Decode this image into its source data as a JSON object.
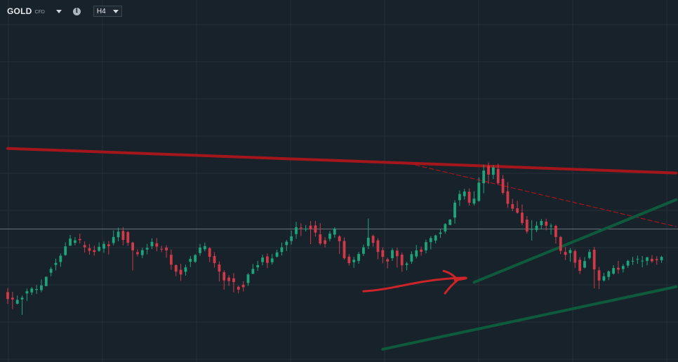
{
  "header": {
    "symbol": "GOLD",
    "instrument_type": "CFD",
    "timeframe": "H4",
    "icons": [
      "caret-down-icon",
      "info-icon",
      "caret-down-icon"
    ]
  },
  "colors": {
    "background": "#18222b",
    "grid": "#24303a",
    "bull": "#1fa37a",
    "bear": "#d03a48",
    "resistance_line": "#a5161c",
    "support_lines": "#0e5a3c",
    "annotation_arrow": "#cc2428",
    "price_line": "#6b747c"
  },
  "chart_data": {
    "type": "candlestick",
    "title": "",
    "xlabel": "",
    "ylabel": "",
    "ylim": [
      0,
      100
    ],
    "grid": true,
    "x_count": 140,
    "horizontal_price_line": 43.9,
    "candles": [
      {
        "o": 15.6,
        "h": 17.4,
        "c": 12.5,
        "l": 10.3
      },
      {
        "o": 13.1,
        "h": 15.7,
        "c": 12.3,
        "l": 8.0
      },
      {
        "o": 10.4,
        "h": 14.1,
        "c": 12.1,
        "l": 10.1
      },
      {
        "o": 12.3,
        "h": 14.1,
        "c": 13.1,
        "l": 5.4
      },
      {
        "o": 15.0,
        "h": 17.2,
        "c": 16.0,
        "l": 11.7
      },
      {
        "o": 15.5,
        "h": 17.9,
        "c": 17.2,
        "l": 14.3
      },
      {
        "o": 16.6,
        "h": 18.8,
        "c": 17.0,
        "l": 14.8
      },
      {
        "o": 16.5,
        "h": 21.3,
        "c": 18.6,
        "l": 15.6
      },
      {
        "o": 18.3,
        "h": 22.5,
        "c": 22.5,
        "l": 18.2
      },
      {
        "o": 24.3,
        "h": 26.9,
        "c": 26.0,
        "l": 22.7
      },
      {
        "o": 27.8,
        "h": 30.6,
        "c": 28.7,
        "l": 25.3
      },
      {
        "o": 29.1,
        "h": 32.9,
        "c": 31.9,
        "l": 27.0
      },
      {
        "o": 32.2,
        "h": 37.9,
        "c": 36.1,
        "l": 31.9
      },
      {
        "o": 36.4,
        "h": 41.2,
        "c": 39.6,
        "l": 36.4
      },
      {
        "o": 37.7,
        "h": 40.3,
        "c": 38.8,
        "l": 36.6
      },
      {
        "o": 39.4,
        "h": 41.8,
        "c": 38.9,
        "l": 37.4
      },
      {
        "o": 36.7,
        "h": 38.3,
        "c": 35.7,
        "l": 33.3
      },
      {
        "o": 35.3,
        "h": 37.2,
        "c": 34.1,
        "l": 32.4
      },
      {
        "o": 34.4,
        "h": 36.4,
        "c": 33.6,
        "l": 32.0
      },
      {
        "o": 34.1,
        "h": 37.9,
        "c": 35.9,
        "l": 33.7
      },
      {
        "o": 35.1,
        "h": 38.4,
        "c": 37.2,
        "l": 33.2
      },
      {
        "o": 37.0,
        "h": 38.5,
        "c": 36.2,
        "l": 32.5
      },
      {
        "o": 37.6,
        "h": 43.3,
        "c": 40.3,
        "l": 36.6
      },
      {
        "o": 40.2,
        "h": 44.5,
        "c": 42.7,
        "l": 38.4
      },
      {
        "o": 43.0,
        "h": 44.7,
        "c": 39.0,
        "l": 36.6
      },
      {
        "o": 42.5,
        "h": 43.0,
        "c": 37.7,
        "l": 36.4
      },
      {
        "o": 37.8,
        "h": 38.2,
        "c": 34.3,
        "l": 25.3
      },
      {
        "o": 33.5,
        "h": 34.8,
        "c": 32.6,
        "l": 31.6
      },
      {
        "o": 32.2,
        "h": 35.5,
        "c": 34.4,
        "l": 30.8
      },
      {
        "o": 34.7,
        "h": 37.2,
        "c": 35.4,
        "l": 32.5
      },
      {
        "o": 36.2,
        "h": 39.7,
        "c": 38.1,
        "l": 34.9
      },
      {
        "o": 37.5,
        "h": 39.8,
        "c": 36.0,
        "l": 33.9
      },
      {
        "o": 35.0,
        "h": 36.4,
        "c": 34.7,
        "l": 33.5
      },
      {
        "o": 35.6,
        "h": 36.6,
        "c": 34.3,
        "l": 31.0
      },
      {
        "o": 32.3,
        "h": 34.7,
        "c": 27.9,
        "l": 25.6
      },
      {
        "o": 27.7,
        "h": 28.0,
        "c": 24.8,
        "l": 22.7
      },
      {
        "o": 25.6,
        "h": 28.3,
        "c": 23.5,
        "l": 20.6
      },
      {
        "o": 24.7,
        "h": 27.9,
        "c": 26.7,
        "l": 23.0
      },
      {
        "o": 29.2,
        "h": 31.8,
        "c": 30.5,
        "l": 26.8
      },
      {
        "o": 29.2,
        "h": 32.6,
        "c": 32.2,
        "l": 28.7
      },
      {
        "o": 33.1,
        "h": 37.2,
        "c": 35.6,
        "l": 31.9
      },
      {
        "o": 34.8,
        "h": 37.8,
        "c": 36.2,
        "l": 33.9
      },
      {
        "o": 35.3,
        "h": 35.8,
        "c": 31.4,
        "l": 29.0
      },
      {
        "o": 31.8,
        "h": 33.5,
        "c": 28.6,
        "l": 26.6
      },
      {
        "o": 28.0,
        "h": 29.4,
        "c": 24.8,
        "l": 20.4
      },
      {
        "o": 24.5,
        "h": 25.4,
        "c": 20.8,
        "l": 16.7
      },
      {
        "o": 22.1,
        "h": 23.2,
        "c": 20.6,
        "l": 18.4
      },
      {
        "o": 21.8,
        "h": 24.1,
        "c": 20.1,
        "l": 15.5
      },
      {
        "o": 18.0,
        "h": 18.5,
        "c": 16.7,
        "l": 15.0
      },
      {
        "o": 18.9,
        "h": 20.5,
        "c": 17.8,
        "l": 15.9
      },
      {
        "o": 19.7,
        "h": 24.1,
        "c": 23.5,
        "l": 18.4
      },
      {
        "o": 23.8,
        "h": 28.2,
        "c": 26.0,
        "l": 23.7
      },
      {
        "o": 26.7,
        "h": 29.6,
        "c": 27.7,
        "l": 25.1
      },
      {
        "o": 29.1,
        "h": 32.4,
        "c": 31.1,
        "l": 27.6
      },
      {
        "o": 31.6,
        "h": 33.0,
        "c": 28.7,
        "l": 26.4
      },
      {
        "o": 29.0,
        "h": 32.7,
        "c": 30.7,
        "l": 28.0
      },
      {
        "o": 31.5,
        "h": 34.6,
        "c": 33.4,
        "l": 31.1
      },
      {
        "o": 33.6,
        "h": 37.8,
        "c": 35.7,
        "l": 32.0
      },
      {
        "o": 36.7,
        "h": 39.0,
        "c": 38.2,
        "l": 34.0
      },
      {
        "o": 38.5,
        "h": 43.2,
        "c": 40.6,
        "l": 36.9
      },
      {
        "o": 41.6,
        "h": 47.1,
        "c": 44.7,
        "l": 39.5
      },
      {
        "o": 44.5,
        "h": 46.5,
        "c": 44.2,
        "l": 40.8
      },
      {
        "o": 43.8,
        "h": 45.7,
        "c": 44.0,
        "l": 42.8
      },
      {
        "o": 45.4,
        "h": 47.5,
        "c": 43.7,
        "l": 37.1
      },
      {
        "o": 45.5,
        "h": 47.5,
        "c": 42.3,
        "l": 40.5
      },
      {
        "o": 41.5,
        "h": 46.5,
        "c": 37.4,
        "l": 36.6
      },
      {
        "o": 38.8,
        "h": 40.2,
        "c": 37.2,
        "l": 35.7
      },
      {
        "o": 39.5,
        "h": 43.0,
        "c": 41.8,
        "l": 38.4
      },
      {
        "o": 41.4,
        "h": 44.7,
        "c": 44.0,
        "l": 40.0
      },
      {
        "o": 40.6,
        "h": 41.1,
        "c": 38.4,
        "l": 32.7
      },
      {
        "o": 38.5,
        "h": 40.1,
        "c": 30.8,
        "l": 30.2
      },
      {
        "o": 31.5,
        "h": 32.6,
        "c": 28.6,
        "l": 27.5
      },
      {
        "o": 29.0,
        "h": 31.4,
        "c": 30.1,
        "l": 26.5
      },
      {
        "o": 29.6,
        "h": 33.6,
        "c": 32.7,
        "l": 28.3
      },
      {
        "o": 32.8,
        "h": 36.9,
        "c": 35.7,
        "l": 31.8
      },
      {
        "o": 36.3,
        "h": 48.6,
        "c": 40.0,
        "l": 34.9
      },
      {
        "o": 40.8,
        "h": 41.4,
        "c": 37.7,
        "l": 36.0
      },
      {
        "o": 38.8,
        "h": 39.8,
        "c": 33.6,
        "l": 30.3
      },
      {
        "o": 34.4,
        "h": 35.7,
        "c": 31.4,
        "l": 28.5
      },
      {
        "o": 30.3,
        "h": 31.0,
        "c": 29.3,
        "l": 26.2
      },
      {
        "o": 30.8,
        "h": 35.3,
        "c": 34.4,
        "l": 29.6
      },
      {
        "o": 34.2,
        "h": 35.6,
        "c": 31.7,
        "l": 26.6
      },
      {
        "o": 32.4,
        "h": 33.4,
        "c": 27.6,
        "l": 24.7
      },
      {
        "o": 27.8,
        "h": 29.2,
        "c": 28.4,
        "l": 25.4
      },
      {
        "o": 29.3,
        "h": 33.9,
        "c": 32.6,
        "l": 28.3
      },
      {
        "o": 31.6,
        "h": 36.7,
        "c": 34.3,
        "l": 30.7
      },
      {
        "o": 34.7,
        "h": 36.0,
        "c": 33.7,
        "l": 31.9
      },
      {
        "o": 34.3,
        "h": 39.1,
        "c": 38.0,
        "l": 33.0
      },
      {
        "o": 38.0,
        "h": 40.7,
        "c": 39.8,
        "l": 34.7
      },
      {
        "o": 38.7,
        "h": 41.3,
        "c": 41.0,
        "l": 37.4
      },
      {
        "o": 41.7,
        "h": 44.0,
        "c": 42.3,
        "l": 39.9
      },
      {
        "o": 42.8,
        "h": 46.5,
        "c": 46.1,
        "l": 41.8
      },
      {
        "o": 45.7,
        "h": 48.4,
        "c": 48.1,
        "l": 45.6
      },
      {
        "o": 49.0,
        "h": 56.8,
        "c": 55.7,
        "l": 46.3
      },
      {
        "o": 56.8,
        "h": 61.2,
        "c": 59.6,
        "l": 54.2
      },
      {
        "o": 58.6,
        "h": 61.9,
        "c": 60.7,
        "l": 57.1
      },
      {
        "o": 60.6,
        "h": 62.1,
        "c": 55.7,
        "l": 54.4
      },
      {
        "o": 55.3,
        "h": 60.8,
        "c": 57.5,
        "l": 54.5
      },
      {
        "o": 56.5,
        "h": 67.1,
        "c": 64.7,
        "l": 56.1
      },
      {
        "o": 64.4,
        "h": 72.7,
        "c": 70.1,
        "l": 59.9
      },
      {
        "o": 72.1,
        "h": 73.7,
        "c": 68.3,
        "l": 64.2
      },
      {
        "o": 68.2,
        "h": 72.5,
        "c": 71.5,
        "l": 66.3
      },
      {
        "o": 70.8,
        "h": 73.2,
        "c": 64.4,
        "l": 64.0
      },
      {
        "o": 66.4,
        "h": 68.1,
        "c": 60.1,
        "l": 59.3
      },
      {
        "o": 60.8,
        "h": 64.9,
        "c": 55.2,
        "l": 53.4
      },
      {
        "o": 55.0,
        "h": 57.4,
        "c": 53.0,
        "l": 51.9
      },
      {
        "o": 53.2,
        "h": 56.5,
        "c": 51.2,
        "l": 50.7
      },
      {
        "o": 51.2,
        "h": 54.9,
        "c": 46.6,
        "l": 45.6
      },
      {
        "o": 48.1,
        "h": 49.7,
        "c": 42.8,
        "l": 41.9
      },
      {
        "o": 43.7,
        "h": 47.9,
        "c": 43.9,
        "l": 38.7
      },
      {
        "o": 43.4,
        "h": 47.3,
        "c": 45.4,
        "l": 42.5
      },
      {
        "o": 45.6,
        "h": 48.4,
        "c": 47.5,
        "l": 43.8
      },
      {
        "o": 47.2,
        "h": 48.5,
        "c": 45.4,
        "l": 43.3
      },
      {
        "o": 45.3,
        "h": 46.4,
        "c": 45.4,
        "l": 41.4
      },
      {
        "o": 45.3,
        "h": 45.8,
        "c": 40.3,
        "l": 37.4
      },
      {
        "o": 40.3,
        "h": 40.8,
        "c": 34.1,
        "l": 32.6
      },
      {
        "o": 33.6,
        "h": 35.8,
        "c": 32.3,
        "l": 30.0
      },
      {
        "o": 33.1,
        "h": 35.3,
        "c": 34.4,
        "l": 29.2
      },
      {
        "o": 34.0,
        "h": 34.7,
        "c": 28.8,
        "l": 26.5
      },
      {
        "o": 30.1,
        "h": 31.3,
        "c": 25.1,
        "l": 23.7
      },
      {
        "o": 26.6,
        "h": 31.3,
        "c": 29.5,
        "l": 26.2
      },
      {
        "o": 30.9,
        "h": 34.8,
        "c": 33.6,
        "l": 30.3
      },
      {
        "o": 34.6,
        "h": 35.9,
        "c": 25.8,
        "l": 17.3
      },
      {
        "o": 25.4,
        "h": 26.9,
        "c": 20.8,
        "l": 17.0
      },
      {
        "o": 20.8,
        "h": 24.3,
        "c": 22.7,
        "l": 20.3
      },
      {
        "o": 22.4,
        "h": 25.3,
        "c": 24.9,
        "l": 21.0
      },
      {
        "o": 23.9,
        "h": 27.7,
        "c": 26.4,
        "l": 23.4
      },
      {
        "o": 26.5,
        "h": 29.6,
        "c": 25.7,
        "l": 23.9
      },
      {
        "o": 25.9,
        "h": 28.2,
        "c": 27.3,
        "l": 24.4
      },
      {
        "o": 27.5,
        "h": 30.1,
        "c": 29.6,
        "l": 26.5
      },
      {
        "o": 29.5,
        "h": 31.4,
        "c": 29.6,
        "l": 27.8
      },
      {
        "o": 30.4,
        "h": 32.0,
        "c": 30.5,
        "l": 28.3
      },
      {
        "o": 29.6,
        "h": 31.8,
        "c": 29.7,
        "l": 26.7
      },
      {
        "o": 29.6,
        "h": 31.4,
        "c": 31.2,
        "l": 27.6
      },
      {
        "o": 30.5,
        "h": 32.2,
        "c": 29.4,
        "l": 28.8
      },
      {
        "o": 30.4,
        "h": 31.7,
        "c": 29.9,
        "l": 27.9
      },
      {
        "o": 29.9,
        "h": 31.9,
        "c": 31.4,
        "l": 28.7
      }
    ],
    "trendlines": [
      {
        "name": "",
        "style": "solid",
        "color": "#a5161c",
        "points": [
          [
            0,
            80.0
          ],
          [
            139,
            69.0
          ]
        ]
      },
      {
        "name": "",
        "style": "dashed",
        "color": "#a5161c",
        "points": [
          [
            82,
            74.0
          ],
          [
            139,
            45.0
          ]
        ]
      },
      {
        "name": "",
        "style": "solid",
        "color": "#0e5a3c",
        "points": [
          [
            97,
            20.0
          ],
          [
            139,
            57.0
          ]
        ]
      },
      {
        "name": "",
        "style": "solid",
        "color": "#0e5a3c",
        "points": [
          [
            78,
            -10.0
          ],
          [
            139,
            18.0
          ]
        ]
      }
    ],
    "annotations": [
      {
        "type": "arrow",
        "color": "#cc2428",
        "from": [
          74,
          16.0
        ],
        "to": [
          93,
          21.0
        ]
      }
    ]
  }
}
